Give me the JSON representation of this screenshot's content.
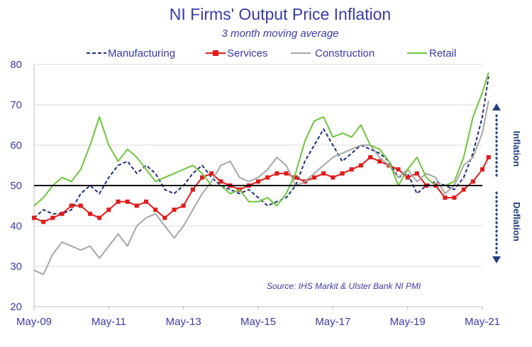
{
  "chart_data": {
    "type": "line",
    "title": "NI Firms' Output Price Inflation",
    "subtitle": "3 month moving average",
    "source": "Source: IHS Markit & Ulster Bank NI PMI",
    "ylim": [
      20,
      80
    ],
    "yticks": [
      20,
      30,
      40,
      50,
      60,
      70,
      80
    ],
    "xlabels": [
      "May-09",
      "May-11",
      "May-13",
      "May-15",
      "May-17",
      "May-19",
      "May-21"
    ],
    "x_start": "2009-05",
    "x_end": "2021-05",
    "reference_line": 50,
    "reference_color": "#000000",
    "grid": true,
    "legend_position": "top",
    "annotations": {
      "upper": "Inflation",
      "lower": "Deflation"
    },
    "series": [
      {
        "name": "Manufacturing",
        "color": "#1f2f7a",
        "style": "dashed",
        "points": [
          [
            "2009-05",
            42
          ],
          [
            "2009-08",
            44
          ],
          [
            "2009-11",
            43
          ],
          [
            "2010-02",
            43
          ],
          [
            "2010-05",
            44
          ],
          [
            "2010-08",
            48
          ],
          [
            "2010-11",
            50
          ],
          [
            "2011-02",
            48
          ],
          [
            "2011-05",
            52
          ],
          [
            "2011-08",
            55
          ],
          [
            "2011-11",
            56
          ],
          [
            "2012-02",
            53
          ],
          [
            "2012-05",
            55
          ],
          [
            "2012-08",
            53
          ],
          [
            "2012-11",
            49
          ],
          [
            "2013-02",
            48
          ],
          [
            "2013-05",
            50
          ],
          [
            "2013-08",
            53
          ],
          [
            "2013-11",
            55
          ],
          [
            "2014-02",
            52
          ],
          [
            "2014-05",
            50
          ],
          [
            "2014-08",
            49
          ],
          [
            "2014-11",
            48
          ],
          [
            "2015-02",
            49
          ],
          [
            "2015-05",
            47
          ],
          [
            "2015-08",
            45
          ],
          [
            "2015-11",
            46
          ],
          [
            "2016-02",
            47
          ],
          [
            "2016-05",
            50
          ],
          [
            "2016-08",
            56
          ],
          [
            "2016-11",
            60
          ],
          [
            "2017-02",
            64
          ],
          [
            "2017-05",
            60
          ],
          [
            "2017-08",
            56
          ],
          [
            "2017-11",
            58
          ],
          [
            "2018-02",
            60
          ],
          [
            "2018-05",
            59
          ],
          [
            "2018-08",
            58
          ],
          [
            "2018-11",
            56
          ],
          [
            "2019-02",
            52
          ],
          [
            "2019-05",
            53
          ],
          [
            "2019-08",
            48
          ],
          [
            "2019-11",
            50
          ],
          [
            "2020-02",
            51
          ],
          [
            "2020-05",
            50
          ],
          [
            "2020-08",
            49
          ],
          [
            "2020-11",
            52
          ],
          [
            "2021-02",
            58
          ],
          [
            "2021-05",
            67
          ],
          [
            "2021-07",
            77
          ]
        ]
      },
      {
        "name": "Services",
        "color": "#e01b1b",
        "style": "solid-square",
        "points": [
          [
            "2009-05",
            42
          ],
          [
            "2009-08",
            41
          ],
          [
            "2009-11",
            42
          ],
          [
            "2010-02",
            43
          ],
          [
            "2010-05",
            45
          ],
          [
            "2010-08",
            45
          ],
          [
            "2010-11",
            43
          ],
          [
            "2011-02",
            42
          ],
          [
            "2011-05",
            44
          ],
          [
            "2011-08",
            46
          ],
          [
            "2011-11",
            46
          ],
          [
            "2012-02",
            45
          ],
          [
            "2012-05",
            46
          ],
          [
            "2012-08",
            44
          ],
          [
            "2012-11",
            42
          ],
          [
            "2013-02",
            44
          ],
          [
            "2013-05",
            45
          ],
          [
            "2013-08",
            49
          ],
          [
            "2013-11",
            52
          ],
          [
            "2014-02",
            53
          ],
          [
            "2014-05",
            51
          ],
          [
            "2014-08",
            50
          ],
          [
            "2014-11",
            49
          ],
          [
            "2015-02",
            50
          ],
          [
            "2015-05",
            51
          ],
          [
            "2015-08",
            52
          ],
          [
            "2015-11",
            53
          ],
          [
            "2016-02",
            53
          ],
          [
            "2016-05",
            52
          ],
          [
            "2016-08",
            51
          ],
          [
            "2016-11",
            52
          ],
          [
            "2017-02",
            53
          ],
          [
            "2017-05",
            52
          ],
          [
            "2017-08",
            53
          ],
          [
            "2017-11",
            54
          ],
          [
            "2018-02",
            55
          ],
          [
            "2018-05",
            57
          ],
          [
            "2018-08",
            56
          ],
          [
            "2018-11",
            55
          ],
          [
            "2019-02",
            54
          ],
          [
            "2019-05",
            52
          ],
          [
            "2019-08",
            53
          ],
          [
            "2019-11",
            50
          ],
          [
            "2020-02",
            50
          ],
          [
            "2020-05",
            47
          ],
          [
            "2020-08",
            47
          ],
          [
            "2020-11",
            49
          ],
          [
            "2021-02",
            51
          ],
          [
            "2021-05",
            54
          ],
          [
            "2021-07",
            57
          ]
        ]
      },
      {
        "name": "Construction",
        "color": "#a6a6a6",
        "style": "solid",
        "points": [
          [
            "2009-05",
            29
          ],
          [
            "2009-08",
            28
          ],
          [
            "2009-11",
            33
          ],
          [
            "2010-02",
            36
          ],
          [
            "2010-05",
            35
          ],
          [
            "2010-08",
            34
          ],
          [
            "2010-11",
            35
          ],
          [
            "2011-02",
            32
          ],
          [
            "2011-05",
            35
          ],
          [
            "2011-08",
            38
          ],
          [
            "2011-11",
            35
          ],
          [
            "2012-02",
            40
          ],
          [
            "2012-05",
            42
          ],
          [
            "2012-08",
            43
          ],
          [
            "2012-11",
            40
          ],
          [
            "2013-02",
            37
          ],
          [
            "2013-05",
            40
          ],
          [
            "2013-08",
            44
          ],
          [
            "2013-11",
            48
          ],
          [
            "2014-02",
            51
          ],
          [
            "2014-05",
            55
          ],
          [
            "2014-08",
            56
          ],
          [
            "2014-11",
            52
          ],
          [
            "2015-02",
            51
          ],
          [
            "2015-05",
            52
          ],
          [
            "2015-08",
            54
          ],
          [
            "2015-11",
            57
          ],
          [
            "2016-02",
            55
          ],
          [
            "2016-05",
            50
          ],
          [
            "2016-08",
            51
          ],
          [
            "2016-11",
            53
          ],
          [
            "2017-02",
            55
          ],
          [
            "2017-05",
            57
          ],
          [
            "2017-08",
            58
          ],
          [
            "2017-11",
            59
          ],
          [
            "2018-02",
            60
          ],
          [
            "2018-05",
            60
          ],
          [
            "2018-08",
            57
          ],
          [
            "2018-11",
            55
          ],
          [
            "2019-02",
            52
          ],
          [
            "2019-05",
            54
          ],
          [
            "2019-08",
            51
          ],
          [
            "2019-11",
            53
          ],
          [
            "2020-02",
            52
          ],
          [
            "2020-05",
            48
          ],
          [
            "2020-08",
            50
          ],
          [
            "2020-11",
            55
          ],
          [
            "2021-02",
            57
          ],
          [
            "2021-05",
            63
          ],
          [
            "2021-07",
            71
          ]
        ]
      },
      {
        "name": "Retail",
        "color": "#6ec63a",
        "style": "solid",
        "points": [
          [
            "2009-05",
            45
          ],
          [
            "2009-08",
            47
          ],
          [
            "2009-11",
            50
          ],
          [
            "2010-02",
            52
          ],
          [
            "2010-05",
            51
          ],
          [
            "2010-08",
            54
          ],
          [
            "2010-11",
            60
          ],
          [
            "2011-02",
            67
          ],
          [
            "2011-05",
            60
          ],
          [
            "2011-08",
            56
          ],
          [
            "2011-11",
            59
          ],
          [
            "2012-02",
            57
          ],
          [
            "2012-05",
            54
          ],
          [
            "2012-08",
            51
          ],
          [
            "2012-11",
            52
          ],
          [
            "2013-02",
            53
          ],
          [
            "2013-05",
            54
          ],
          [
            "2013-08",
            55
          ],
          [
            "2013-11",
            53
          ],
          [
            "2014-02",
            50
          ],
          [
            "2014-05",
            50
          ],
          [
            "2014-08",
            48
          ],
          [
            "2014-11",
            49
          ],
          [
            "2015-02",
            46
          ],
          [
            "2015-05",
            46
          ],
          [
            "2015-08",
            47
          ],
          [
            "2015-11",
            45
          ],
          [
            "2016-02",
            48
          ],
          [
            "2016-05",
            53
          ],
          [
            "2016-08",
            61
          ],
          [
            "2016-11",
            66
          ],
          [
            "2017-02",
            67
          ],
          [
            "2017-05",
            62
          ],
          [
            "2017-08",
            63
          ],
          [
            "2017-11",
            62
          ],
          [
            "2018-02",
            65
          ],
          [
            "2018-05",
            60
          ],
          [
            "2018-08",
            59
          ],
          [
            "2018-11",
            56
          ],
          [
            "2019-02",
            50
          ],
          [
            "2019-05",
            54
          ],
          [
            "2019-08",
            57
          ],
          [
            "2019-11",
            52
          ],
          [
            "2020-02",
            50
          ],
          [
            "2020-05",
            50
          ],
          [
            "2020-08",
            51
          ],
          [
            "2020-11",
            57
          ],
          [
            "2021-02",
            67
          ],
          [
            "2021-05",
            73
          ],
          [
            "2021-07",
            78
          ]
        ]
      }
    ]
  }
}
